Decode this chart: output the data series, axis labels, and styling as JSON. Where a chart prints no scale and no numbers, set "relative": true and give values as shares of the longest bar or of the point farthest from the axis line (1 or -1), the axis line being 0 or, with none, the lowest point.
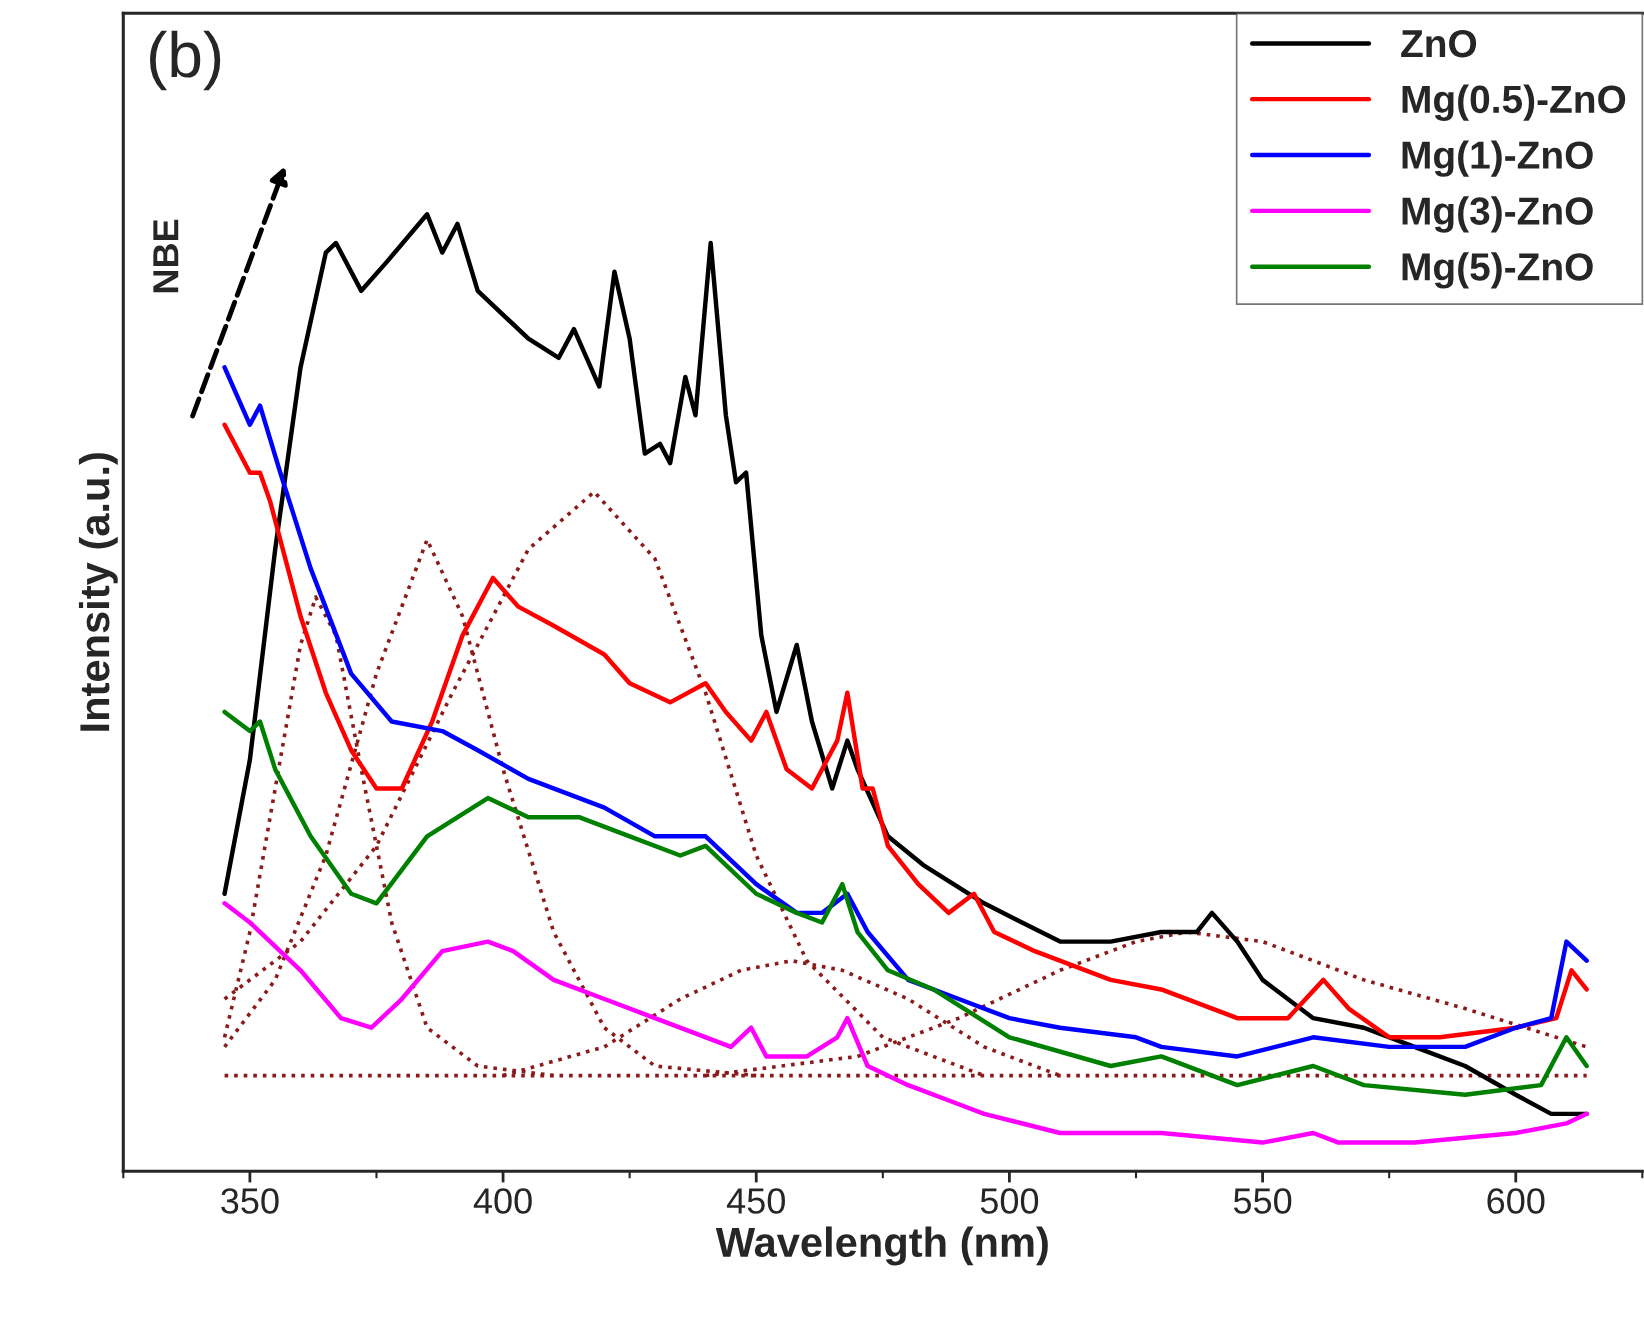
{
  "chart_data": {
    "type": "line",
    "relative": true,
    "xlabel": "Wavelength (nm)",
    "ylabel": "Intensity (a.u.)",
    "xlim": [
      344.4,
      614.7
    ],
    "xticks": [
      350,
      400,
      450,
      500,
      550,
      600
    ],
    "grid": false,
    "legend": "top right",
    "line_style": "solid",
    "marker": "none",
    "annotations": [
      "(b)",
      "NBE"
    ],
    "series": [
      {
        "name": "ZnO",
        "color": "#000000",
        "x": [
          345,
          350,
          355,
          360,
          365,
          367,
          372,
          377,
          385,
          388,
          391,
          395,
          405,
          411,
          414,
          419,
          422,
          425,
          428,
          431,
          433,
          436,
          438,
          441,
          444,
          446,
          448,
          451,
          454,
          458,
          461,
          465,
          468,
          470,
          476,
          483,
          495,
          510,
          520,
          530,
          537,
          540,
          545,
          550,
          560,
          570,
          580,
          590,
          600,
          607,
          614
        ],
        "values": [
          0.29,
          0.43,
          0.65,
          0.84,
          0.96,
          0.97,
          0.92,
          0.95,
          1.0,
          0.96,
          0.99,
          0.92,
          0.87,
          0.85,
          0.88,
          0.82,
          0.94,
          0.87,
          0.75,
          0.76,
          0.74,
          0.83,
          0.79,
          0.97,
          0.79,
          0.72,
          0.73,
          0.56,
          0.48,
          0.55,
          0.47,
          0.4,
          0.45,
          0.42,
          0.35,
          0.32,
          0.28,
          0.24,
          0.24,
          0.25,
          0.25,
          0.27,
          0.24,
          0.2,
          0.16,
          0.15,
          0.13,
          0.11,
          0.08,
          0.06,
          0.06
        ]
      },
      {
        "name": "Mg(0.5)-ZnO",
        "color": "#ff0000",
        "x": [
          345,
          350,
          352,
          354,
          360,
          365,
          370,
          375,
          380,
          386,
          392,
          398,
          403,
          410,
          420,
          425,
          433,
          440,
          444,
          449,
          452,
          456,
          461,
          464,
          466,
          468,
          471,
          473,
          476,
          482,
          488,
          493,
          497,
          505,
          520,
          530,
          545,
          555,
          562,
          567,
          575,
          585,
          600,
          608,
          611,
          614
        ],
        "values": [
          0.78,
          0.73,
          0.73,
          0.7,
          0.58,
          0.5,
          0.44,
          0.4,
          0.4,
          0.47,
          0.56,
          0.62,
          0.59,
          0.57,
          0.54,
          0.51,
          0.49,
          0.51,
          0.48,
          0.45,
          0.48,
          0.42,
          0.4,
          0.43,
          0.45,
          0.5,
          0.4,
          0.4,
          0.34,
          0.3,
          0.27,
          0.29,
          0.25,
          0.23,
          0.2,
          0.19,
          0.16,
          0.16,
          0.2,
          0.17,
          0.14,
          0.14,
          0.15,
          0.16,
          0.21,
          0.19
        ]
      },
      {
        "name": "Mg(1)-ZnO",
        "color": "#0000ff",
        "x": [
          345,
          350,
          352,
          356,
          362,
          370,
          378,
          388,
          395,
          405,
          420,
          430,
          440,
          450,
          458,
          463,
          468,
          472,
          480,
          490,
          500,
          510,
          525,
          530,
          545,
          560,
          575,
          590,
          600,
          607,
          610,
          614
        ],
        "values": [
          0.84,
          0.78,
          0.8,
          0.73,
          0.63,
          0.52,
          0.47,
          0.46,
          0.44,
          0.41,
          0.38,
          0.35,
          0.35,
          0.3,
          0.27,
          0.27,
          0.29,
          0.25,
          0.2,
          0.18,
          0.16,
          0.15,
          0.14,
          0.13,
          0.12,
          0.14,
          0.13,
          0.13,
          0.15,
          0.16,
          0.24,
          0.22
        ]
      },
      {
        "name": "Mg(3)-ZnO",
        "color": "#ff00ff",
        "x": [
          345,
          350,
          360,
          368,
          374,
          380,
          388,
          397,
          402,
          410,
          420,
          430,
          445,
          449,
          452,
          460,
          466,
          468,
          472,
          480,
          490,
          495,
          510,
          530,
          550,
          560,
          565,
          580,
          600,
          610,
          614
        ],
        "values": [
          0.28,
          0.26,
          0.21,
          0.16,
          0.15,
          0.18,
          0.23,
          0.24,
          0.23,
          0.2,
          0.18,
          0.16,
          0.13,
          0.15,
          0.12,
          0.12,
          0.14,
          0.16,
          0.11,
          0.09,
          0.07,
          0.06,
          0.04,
          0.04,
          0.03,
          0.04,
          0.03,
          0.03,
          0.04,
          0.05,
          0.06
        ]
      },
      {
        "name": "Mg(5)-ZnO",
        "color": "#008000",
        "x": [
          345,
          350,
          352,
          355,
          362,
          370,
          375,
          385,
          397,
          405,
          415,
          425,
          435,
          440,
          450,
          458,
          463,
          467,
          470,
          476,
          485,
          500,
          520,
          530,
          545,
          560,
          570,
          590,
          605,
          610,
          614
        ],
        "values": [
          0.48,
          0.46,
          0.47,
          0.42,
          0.35,
          0.29,
          0.28,
          0.35,
          0.39,
          0.37,
          0.37,
          0.35,
          0.33,
          0.34,
          0.29,
          0.27,
          0.26,
          0.3,
          0.25,
          0.21,
          0.19,
          0.14,
          0.11,
          0.12,
          0.09,
          0.11,
          0.09,
          0.08,
          0.09,
          0.14,
          0.11
        ]
      },
      {
        "color": "#8b1a1a",
        "line_style": "dotted",
        "x": [
          345,
          350,
          355,
          360,
          363,
          367,
          372,
          378,
          385,
          395,
          410
        ],
        "values": [
          0.14,
          0.25,
          0.4,
          0.55,
          0.6,
          0.56,
          0.42,
          0.26,
          0.15,
          0.11,
          0.1
        ]
      },
      {
        "color": "#8b1a1a",
        "line_style": "dotted",
        "x": [
          345,
          355,
          365,
          375,
          385,
          392,
          400,
          410,
          420,
          430,
          450
        ],
        "values": [
          0.13,
          0.2,
          0.33,
          0.52,
          0.66,
          0.58,
          0.42,
          0.25,
          0.15,
          0.11,
          0.1
        ]
      },
      {
        "color": "#8b1a1a",
        "line_style": "dotted",
        "x": [
          345,
          360,
          375,
          390,
          405,
          418,
          430,
          440,
          450,
          460,
          475,
          495
        ],
        "values": [
          0.18,
          0.24,
          0.34,
          0.5,
          0.65,
          0.71,
          0.64,
          0.5,
          0.33,
          0.22,
          0.14,
          0.1
        ]
      },
      {
        "color": "#8b1a1a",
        "line_style": "dotted",
        "x": [
          400,
          420,
          435,
          447,
          457,
          467,
          480,
          495,
          510
        ],
        "values": [
          0.1,
          0.13,
          0.18,
          0.21,
          0.22,
          0.21,
          0.18,
          0.13,
          0.1
        ]
      },
      {
        "color": "#8b1a1a",
        "line_style": "dotted",
        "x": [
          440,
          470,
          490,
          510,
          525,
          535,
          550,
          570,
          590,
          614
        ],
        "values": [
          0.1,
          0.12,
          0.16,
          0.21,
          0.24,
          0.25,
          0.24,
          0.2,
          0.17,
          0.13
        ]
      },
      {
        "color": "#8b1a1a",
        "line_style": "dotted",
        "x": [
          345,
          614
        ],
        "values": [
          0.1,
          0.1
        ]
      }
    ]
  }
}
